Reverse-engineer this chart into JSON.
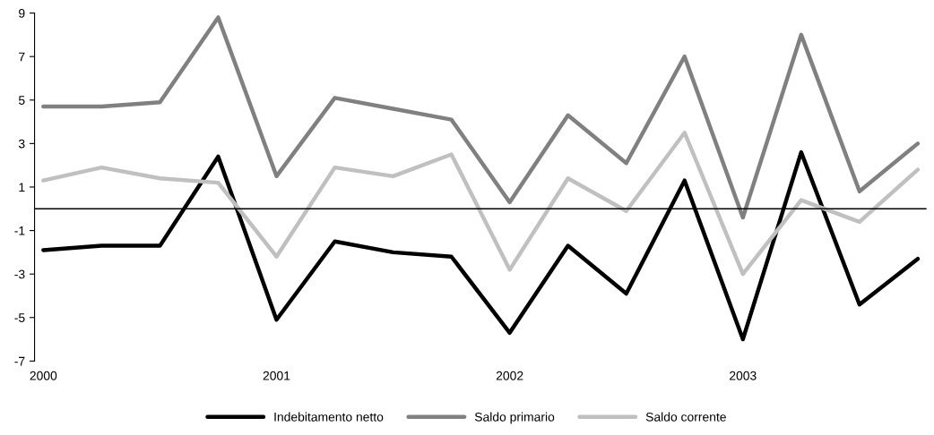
{
  "chart_data": {
    "type": "line",
    "categories": [
      "2000",
      null,
      null,
      null,
      "2001",
      null,
      null,
      null,
      "2002",
      null,
      null,
      null,
      "2003",
      null,
      null,
      null
    ],
    "series": [
      {
        "name": "Indebitamento netto",
        "color": "#000000",
        "values": [
          -1.9,
          -1.7,
          -1.7,
          2.4,
          -5.1,
          -1.5,
          -2.0,
          -2.2,
          -5.7,
          -1.7,
          -3.9,
          1.3,
          -6.0,
          2.6,
          -4.4,
          -2.3
        ]
      },
      {
        "name": "Saldo primario",
        "color": "#808080",
        "values": [
          4.7,
          4.7,
          4.9,
          8.8,
          1.5,
          5.1,
          4.6,
          4.1,
          0.3,
          4.3,
          2.1,
          7.0,
          -0.4,
          8.0,
          0.8,
          3.0
        ]
      },
      {
        "name": "Saldo corrente",
        "color": "#c0c0c0",
        "values": [
          1.3,
          1.9,
          1.4,
          1.2,
          -2.2,
          1.9,
          1.5,
          2.5,
          -2.8,
          1.4,
          -0.1,
          3.5,
          -3.0,
          0.4,
          -0.6,
          1.8
        ]
      }
    ],
    "ylim": [
      -7,
      9
    ],
    "yticks": [
      -7,
      -5,
      -3,
      -1,
      1,
      3,
      5,
      7,
      9
    ],
    "ref_lines": [
      {
        "axis": "y",
        "value": 0,
        "color": "#000000"
      }
    ],
    "grid": false,
    "legend": "bottom",
    "marker": "none",
    "line_style": "solid"
  }
}
